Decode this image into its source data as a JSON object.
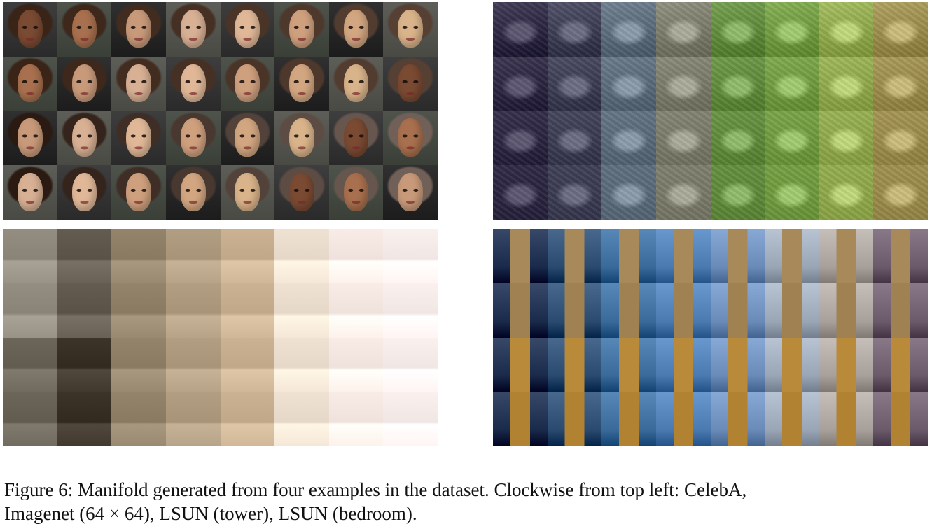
{
  "figure": {
    "panels": [
      {
        "id": "celeba",
        "name": "CelebA",
        "rows": 4,
        "cols": 8
      },
      {
        "id": "imagenet",
        "name": "Imagenet (64 × 64)",
        "rows": 4,
        "cols": 8
      },
      {
        "id": "bedroom",
        "name": "LSUN (bedroom)",
        "rows": 4,
        "cols": 8
      },
      {
        "id": "tower",
        "name": "LSUN (tower)",
        "rows": 4,
        "cols": 8
      }
    ],
    "caption": {
      "line1": "Figure 6: Manifold generated from four examples in the dataset. Clockwise from top left: CelebA,",
      "line2": "Imagenet (64 × 64), LSUN (tower), LSUN (bedroom)."
    }
  },
  "colors": {
    "celeba_bg": [
      "#2a2a2a",
      "#3a3f37",
      "#1c1c1c",
      "#4a4a44"
    ],
    "celeba_skin": [
      "#7a4a32",
      "#a8704e",
      "#c89a7a",
      "#d8b094",
      "#e0b898",
      "#cfa07e",
      "#d2a680",
      "#d9b38a"
    ],
    "imagenet_cols": [
      "#2b2540",
      "#3a3b52",
      "#5a6a7a",
      "#7a7a6a",
      "#5f8a3a",
      "#6f9a3e",
      "#8fa84a",
      "#9a8a4a"
    ],
    "bedroom_cols": [
      "#8a8478",
      "#5a5246",
      "#8a7a62",
      "#a89478",
      "#c0a888",
      "#e6d8c8",
      "#efe2dc",
      "#f0e6e4"
    ],
    "tower_cols": [
      "#1a2a4a",
      "#2a4a70",
      "#3a6a9a",
      "#4a7ab0",
      "#6a8ab8",
      "#9aa6b6",
      "#a8a09a",
      "#6a5a6a"
    ]
  }
}
